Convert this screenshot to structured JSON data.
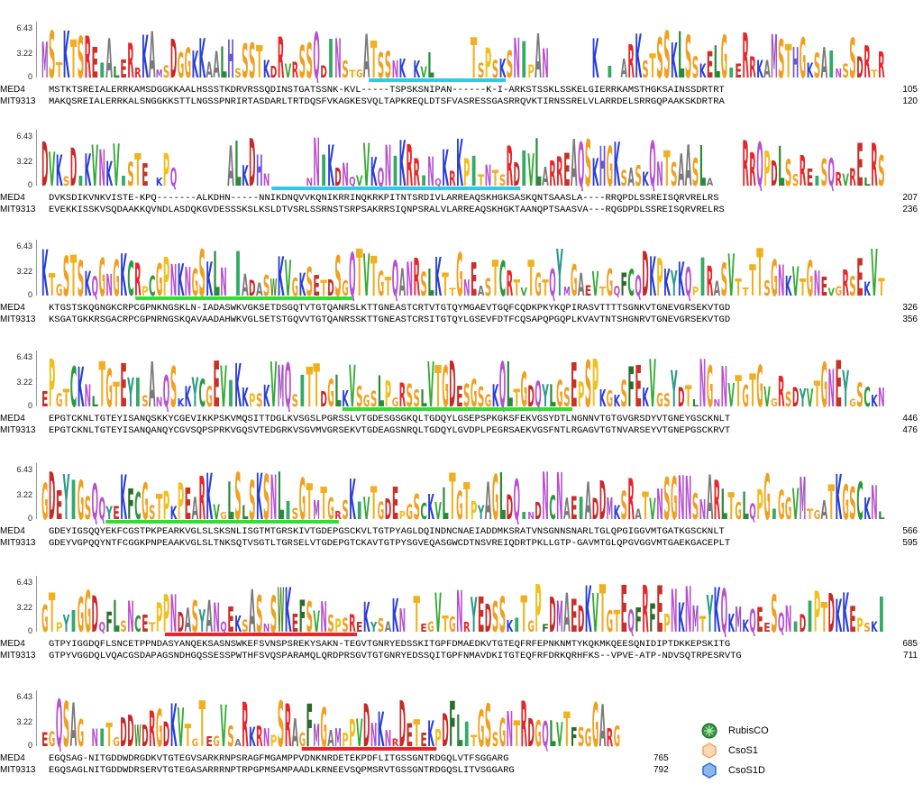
{
  "y_ticks": [
    "6.43",
    "3.22",
    "0"
  ],
  "seq_labels": [
    "MED4",
    "MIT9313"
  ],
  "panels": [
    {
      "med4": "MSTKTSREIALERRKAMSDGGKKAALHSSSTKDRVRSSQDINSTGATSSNK-KVL-----TSPSKSNIPAN------K-I-ARKSTSSKLSSKELGIERRKAMSTHGKSAINSSDRTRT",
      "mit": "MAKQSREIALERRKALSNGGKKSTTLNGSSPNRIRTASDARLTRTDQSFVKAGKESVQLTAPKREQLDTSFVASRESSGASRRQVKTIRNSSRELVLARRDELSRRGQPAAKSKDRTRA",
      "end_med4": "105",
      "end_mit": "120"
    },
    {
      "med4": "DVKSDIKVNKVISTE-KPQ-------ALKDHN-----NNIKDNQVVKQNIKRRINQKRKPITNTSRDIVLARREAQSKHGKSASKQNTSAASLA----RRQPDLSSREISQRVRELRS",
      "mit": "EVEKKISSKVSQDAAKKQVNDLASDQKGVDESSSKSLKSLDTVSRLSSRNSTSRPSAKRRSIQNPSRALVLARREAQSKHGKTAANQPTSAASVA---RQGDPDLSSREISQRVRELRS",
      "end_med4": "207",
      "end_mit": "236"
    },
    {
      "med4": "KTGSTSKQGNGKCRPCGPNKNGSKLN-IADASWKVGKSETDSGQTVTGTQANRSLKTTGNEASTCRTVTGTQYMGAEVTGQFCQDKPKYKQPIRASVTTTTSGNKVTGNEVGRSEKVTGD",
      "mit": "KSGATGKKRSGACRPCGPNRNGSKQAVAADAHWKVGLSETSTGQVVTGTQANRSSKTTGNEASTCRSITGTQYLGSEVFDTFCQSAPQPGQPLKVAVTNTSHGNRVTGNEVGRSEKVTGD",
      "end_med4": "326",
      "end_mit": "356"
    },
    {
      "med4": "EPGTCKNLTGTEYISANQSKKYCGEVIKKPSKVMQSITTDGLKVSGSLPGRSSLVTGDESGSGKQLTGDQYLGSEPSPKGKSFEKVGSYDTLNGNNVTGTGVGRSDYVTGNEYGSCKNLT",
      "mit": "EPGTCKNLTGTEYISANQANQYCGVSQPSPRKVGQSVTEDGRKVSGVMVGRSEKVTGDEAGSNRQLTGDQYLGVDPLPEGRSAEKVGSFNTLRGAGVTGTNVARSEYVTGNEPGSCKRVT",
      "end_med4": "446",
      "end_mit": "476"
    },
    {
      "med4": "GDEYIGSQQYEKFCGSTPKPEARKVGLSLSKSNLISGTMTGRSKIVTGDEPGSCKVLTGTPYAGLDQINDNCNAEIADDMKSRATVNSGNNSNARLTGLQPGIGGVMTGATKGSCKNLT",
      "mit": "GDEYVGPQQYNTFCGGKPNPEAAKVGLSLTNKSQTVSGTLTGRSELVTGDEPGTCKAVTGTPYSGVEQASGWCDTNSVREIQDRTPKLLGTP-GAVMTGLQPGVGGVMTGAEKGACEPLT",
      "end_med4": "566",
      "end_mit": "595"
    },
    {
      "med4": "GTPYIGGDQFLSNCETPPNDASYANQEKSASNSWKEFSVNSPSREKYSAKN-TEGVTGNRYEDSSKITGPFDMAEDKVTGTEQFRFEPNKNMTYKQKMKQEESQNIDIPTDKKEPSKITG",
      "mit": "GTPYVGGDQLVQACGSDAPAGSNDHGQSSESSPWTHFSVQSPARAMQLQRDPRSGVTGTGNRYEDSSQITGPFNMAVDKITGTEQFRFDRKQRHFKS--VPVE-ATP-NDVSQTRPESRVTG",
      "end_med4": "685",
      "end_mit": "711"
    },
    {
      "med4": "EGQSAG-NITGDDWDRGDKVTGTEGVSARKRNPSRAGFMGAMPPVDNKNRDETEKPDFLITGSSGNTRDGQLVTFSGGARG",
      "mit": "EGQSAGLNITGDDWDRSERVTGTEGASARRRNPTRPGPMSAMPAADLKRNEEVSQPMSRVTGSSGNTRDGQSLITVSGGARG",
      "end_med4": "765",
      "end_mit": "792"
    }
  ],
  "legend": [
    {
      "label": "RubisCO",
      "icon": "rubisco-icon",
      "color": "#2e9a3a"
    },
    {
      "label": "CsoS1",
      "icon": "csos1-icon",
      "color": "#f5a45a"
    },
    {
      "label": "CsoS1D",
      "icon": "csos1d-icon",
      "color": "#2a6fd6"
    }
  ],
  "colors": {
    "red_region": "#e8262a",
    "orange_region": "#f0a020",
    "cyan_bar": "#33c8e8",
    "green_bar": "#33dd33",
    "red_bar": "#e8262a",
    "marker": "#8b1a1a",
    "box": "#aaaaaa"
  }
}
